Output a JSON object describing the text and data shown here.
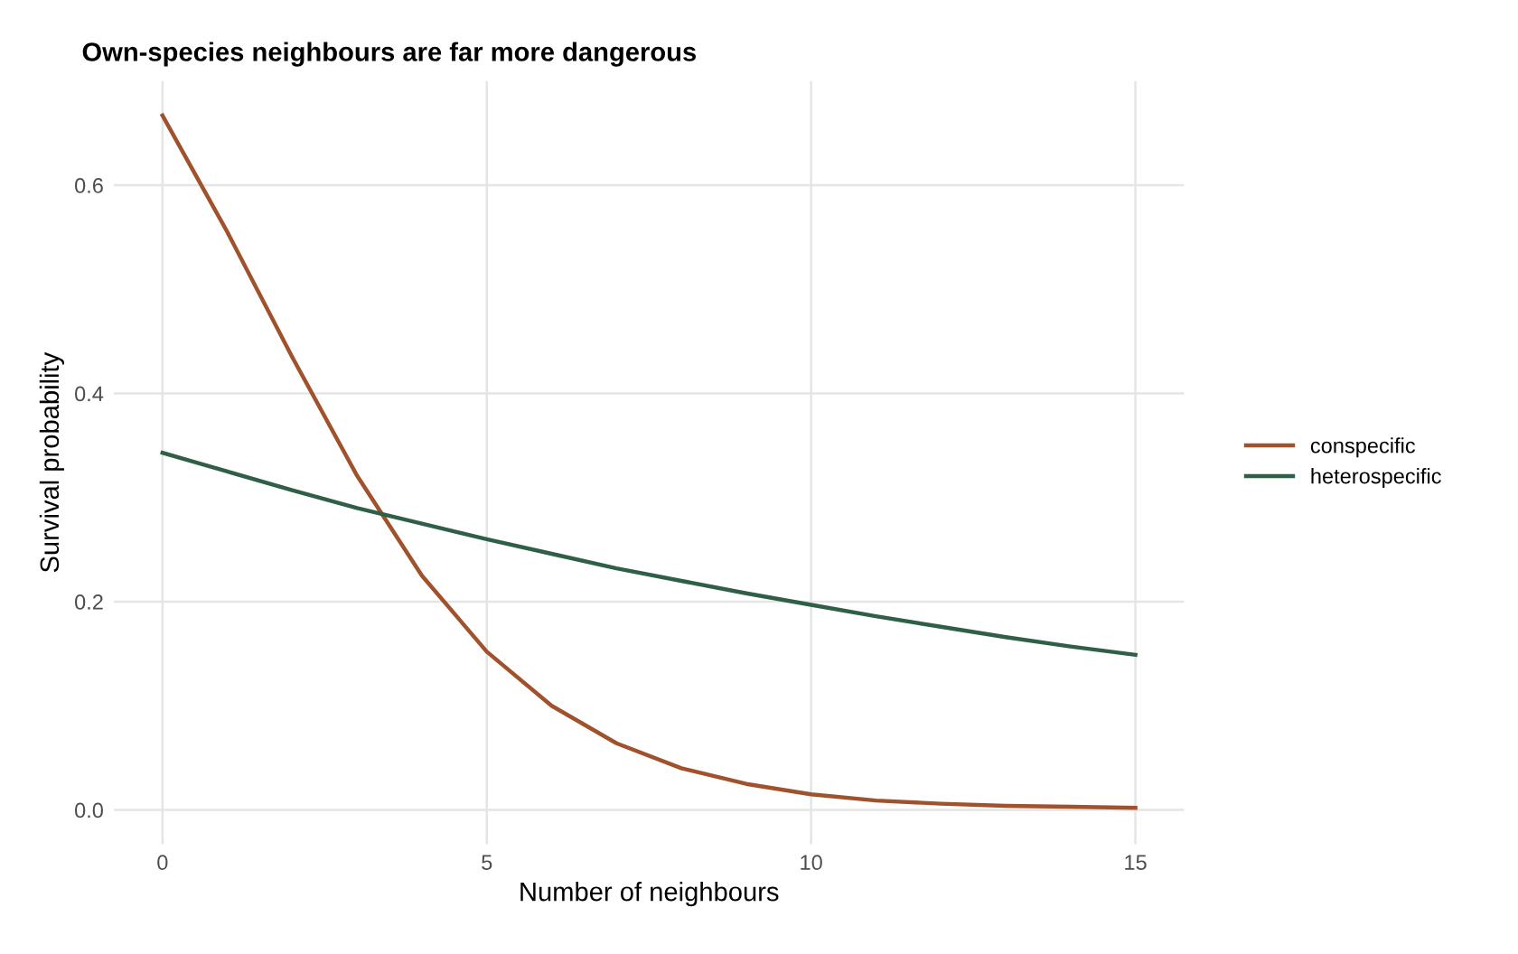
{
  "chart_data": {
    "type": "line",
    "title": "Own-species neighbours are far more dangerous",
    "xlabel": "Number of neighbours",
    "ylabel": "Survival probability",
    "x": [
      0,
      1,
      2,
      3,
      4,
      5,
      6,
      7,
      8,
      9,
      10,
      11,
      12,
      13,
      14,
      15
    ],
    "series": [
      {
        "name": "conspecific",
        "color": "#a0522d",
        "values": [
          0.667,
          0.555,
          0.435,
          0.321,
          0.225,
          0.152,
          0.1,
          0.064,
          0.04,
          0.025,
          0.015,
          0.009,
          0.006,
          0.004,
          0.003,
          0.002
        ]
      },
      {
        "name": "heterospecific",
        "color": "#2f5f46",
        "values": [
          0.343,
          0.325,
          0.307,
          0.29,
          0.275,
          0.26,
          0.246,
          0.232,
          0.22,
          0.208,
          0.197,
          0.186,
          0.176,
          0.166,
          0.157,
          0.149
        ]
      }
    ],
    "xlim": [
      -0.75,
      15.75
    ],
    "xticks": [
      0,
      5,
      10,
      15
    ],
    "ylim": [
      -0.033,
      0.7
    ],
    "yticks": [
      {
        "value": 0,
        "label": "0.0"
      },
      {
        "value": 0.2,
        "label": "0.2"
      },
      {
        "value": 0.4,
        "label": "0.4"
      },
      {
        "value": 0.6,
        "label": "0.6"
      }
    ],
    "grid": true,
    "legend": "right",
    "line_style": "solid",
    "marker": "none"
  }
}
